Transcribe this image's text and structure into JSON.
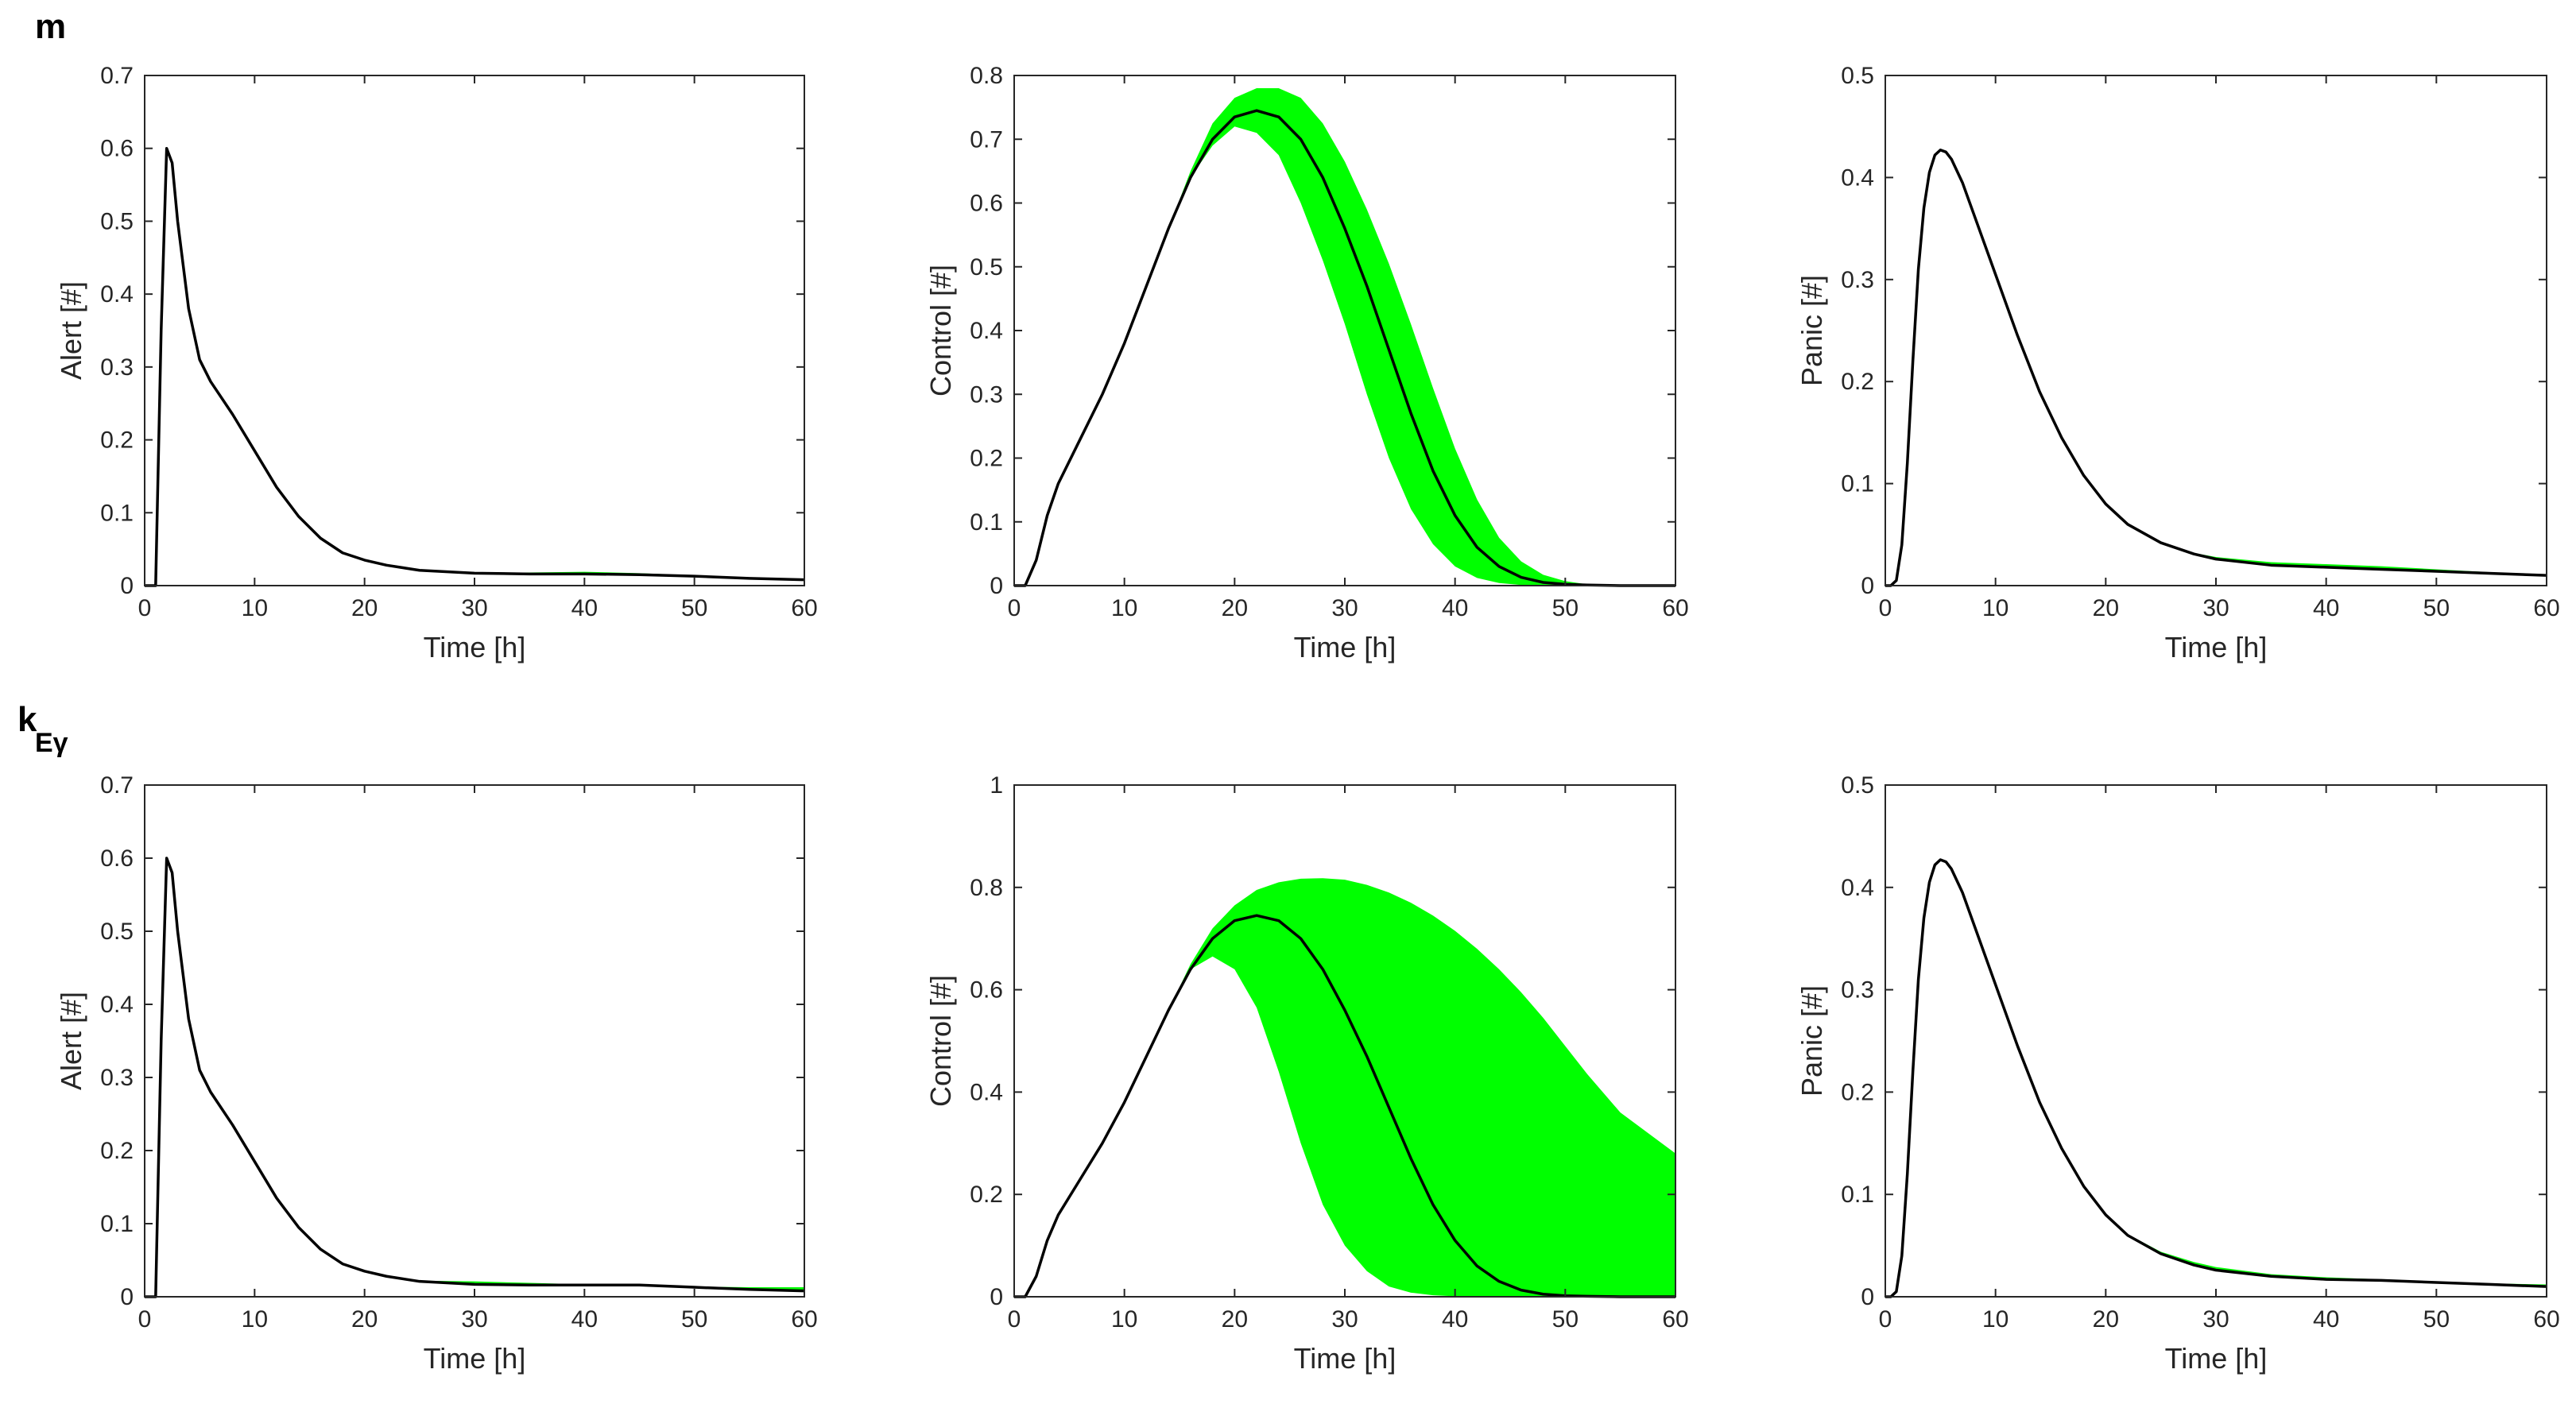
{
  "row_labels": [
    {
      "text": "m",
      "subscript": ""
    },
    {
      "text": "k",
      "subscript": "Eγ"
    }
  ],
  "colors": {
    "band": "#00ff00",
    "line": "#000000",
    "axis": "#262626"
  },
  "chart_data": [
    {
      "type": "area",
      "row": 0,
      "col": 0,
      "xlabel": "Time [h]",
      "ylabel": "Alert [#]",
      "xlim": [
        0,
        60
      ],
      "ylim": [
        0,
        0.7
      ],
      "xticks": [
        0,
        10,
        20,
        30,
        40,
        50,
        60
      ],
      "yticks": [
        0,
        0.1,
        0.2,
        0.3,
        0.4,
        0.5,
        0.6,
        0.7
      ],
      "x": [
        0,
        0.5,
        1,
        1.5,
        2,
        2.5,
        3,
        4,
        5,
        6,
        8,
        10,
        12,
        14,
        16,
        18,
        20,
        22,
        25,
        30,
        35,
        40,
        45,
        50,
        55,
        60
      ],
      "series": [
        {
          "role": "mean",
          "values": [
            0,
            0,
            0,
            0.35,
            0.6,
            0.58,
            0.5,
            0.38,
            0.31,
            0.28,
            0.235,
            0.185,
            0.135,
            0.095,
            0.065,
            0.045,
            0.035,
            0.028,
            0.021,
            0.017,
            0.016,
            0.016,
            0.015,
            0.013,
            0.01,
            0.008
          ]
        },
        {
          "role": "upper",
          "values": [
            0,
            0,
            0,
            0.35,
            0.6,
            0.58,
            0.5,
            0.38,
            0.31,
            0.28,
            0.235,
            0.185,
            0.135,
            0.095,
            0.065,
            0.045,
            0.035,
            0.028,
            0.021,
            0.018,
            0.018,
            0.019,
            0.017,
            0.014,
            0.011,
            0.009
          ]
        },
        {
          "role": "lower",
          "values": [
            0,
            0,
            0,
            0.35,
            0.6,
            0.58,
            0.5,
            0.38,
            0.31,
            0.28,
            0.235,
            0.185,
            0.135,
            0.095,
            0.065,
            0.045,
            0.035,
            0.028,
            0.021,
            0.017,
            0.015,
            0.015,
            0.014,
            0.012,
            0.01,
            0.008
          ]
        }
      ]
    },
    {
      "type": "area",
      "row": 0,
      "col": 1,
      "xlabel": "Time [h]",
      "ylabel": "Control [#]",
      "xlim": [
        0,
        60
      ],
      "ylim": [
        0,
        0.8
      ],
      "xticks": [
        0,
        10,
        20,
        30,
        40,
        50,
        60
      ],
      "yticks": [
        0,
        0.1,
        0.2,
        0.3,
        0.4,
        0.5,
        0.6,
        0.7,
        0.8
      ],
      "x": [
        0,
        1,
        2,
        3,
        4,
        6,
        8,
        10,
        12,
        14,
        16,
        18,
        20,
        22,
        24,
        26,
        28,
        30,
        32,
        34,
        36,
        38,
        40,
        42,
        44,
        46,
        48,
        50,
        52,
        55,
        60
      ],
      "series": [
        {
          "role": "mean",
          "values": [
            0,
            0,
            0.04,
            0.11,
            0.16,
            0.23,
            0.3,
            0.38,
            0.47,
            0.56,
            0.64,
            0.7,
            0.735,
            0.745,
            0.735,
            0.7,
            0.64,
            0.56,
            0.47,
            0.37,
            0.27,
            0.18,
            0.11,
            0.06,
            0.03,
            0.013,
            0.005,
            0.002,
            0.001,
            0,
            0
          ]
        },
        {
          "role": "upper",
          "values": [
            0,
            0,
            0.04,
            0.11,
            0.16,
            0.23,
            0.3,
            0.38,
            0.47,
            0.56,
            0.65,
            0.725,
            0.765,
            0.78,
            0.78,
            0.765,
            0.725,
            0.665,
            0.59,
            0.505,
            0.41,
            0.31,
            0.215,
            0.135,
            0.075,
            0.038,
            0.017,
            0.007,
            0.002,
            0,
            0
          ]
        },
        {
          "role": "lower",
          "values": [
            0,
            0,
            0.04,
            0.11,
            0.16,
            0.23,
            0.3,
            0.38,
            0.47,
            0.56,
            0.64,
            0.69,
            0.72,
            0.71,
            0.675,
            0.6,
            0.51,
            0.41,
            0.3,
            0.2,
            0.12,
            0.065,
            0.03,
            0.012,
            0.004,
            0.001,
            0,
            0,
            0,
            0,
            0
          ]
        }
      ]
    },
    {
      "type": "area",
      "row": 0,
      "col": 2,
      "xlabel": "Time [h]",
      "ylabel": "Panic [#]",
      "xlim": [
        0,
        60
      ],
      "ylim": [
        0,
        0.5
      ],
      "xticks": [
        0,
        10,
        20,
        30,
        40,
        50,
        60
      ],
      "yticks": [
        0,
        0.1,
        0.2,
        0.3,
        0.4,
        0.5
      ],
      "x": [
        0,
        0.5,
        1,
        1.5,
        2,
        2.5,
        3,
        3.5,
        4,
        4.5,
        5,
        5.5,
        6,
        7,
        8,
        10,
        12,
        14,
        16,
        18,
        20,
        22,
        25,
        28,
        30,
        35,
        40,
        45,
        50,
        55,
        60
      ],
      "series": [
        {
          "role": "mean",
          "values": [
            0,
            0,
            0.005,
            0.04,
            0.12,
            0.22,
            0.31,
            0.37,
            0.405,
            0.422,
            0.427,
            0.425,
            0.418,
            0.395,
            0.365,
            0.305,
            0.245,
            0.19,
            0.145,
            0.108,
            0.08,
            0.06,
            0.042,
            0.031,
            0.026,
            0.02,
            0.018,
            0.016,
            0.014,
            0.012,
            0.01
          ]
        },
        {
          "role": "upper",
          "values": [
            0,
            0,
            0.005,
            0.04,
            0.12,
            0.22,
            0.31,
            0.37,
            0.405,
            0.422,
            0.427,
            0.425,
            0.418,
            0.395,
            0.365,
            0.305,
            0.245,
            0.19,
            0.145,
            0.108,
            0.08,
            0.06,
            0.042,
            0.032,
            0.028,
            0.023,
            0.021,
            0.019,
            0.016,
            0.013,
            0.01
          ]
        },
        {
          "role": "lower",
          "values": [
            0,
            0,
            0.005,
            0.04,
            0.12,
            0.22,
            0.31,
            0.37,
            0.405,
            0.422,
            0.427,
            0.425,
            0.418,
            0.395,
            0.365,
            0.305,
            0.245,
            0.19,
            0.145,
            0.108,
            0.08,
            0.06,
            0.042,
            0.031,
            0.025,
            0.019,
            0.017,
            0.015,
            0.013,
            0.011,
            0.009
          ]
        }
      ]
    },
    {
      "type": "area",
      "row": 1,
      "col": 0,
      "xlabel": "Time [h]",
      "ylabel": "Alert [#]",
      "xlim": [
        0,
        60
      ],
      "ylim": [
        0,
        0.7
      ],
      "xticks": [
        0,
        10,
        20,
        30,
        40,
        50,
        60
      ],
      "yticks": [
        0,
        0.1,
        0.2,
        0.3,
        0.4,
        0.5,
        0.6,
        0.7
      ],
      "x": [
        0,
        0.5,
        1,
        1.5,
        2,
        2.5,
        3,
        4,
        5,
        6,
        8,
        10,
        12,
        14,
        16,
        18,
        20,
        22,
        25,
        30,
        35,
        40,
        45,
        50,
        55,
        60
      ],
      "series": [
        {
          "role": "mean",
          "values": [
            0,
            0,
            0,
            0.35,
            0.6,
            0.58,
            0.5,
            0.38,
            0.31,
            0.28,
            0.235,
            0.185,
            0.135,
            0.095,
            0.065,
            0.045,
            0.035,
            0.028,
            0.021,
            0.017,
            0.016,
            0.016,
            0.016,
            0.013,
            0.01,
            0.008
          ]
        },
        {
          "role": "upper",
          "values": [
            0,
            0,
            0,
            0.35,
            0.6,
            0.58,
            0.5,
            0.38,
            0.31,
            0.28,
            0.235,
            0.185,
            0.135,
            0.095,
            0.065,
            0.045,
            0.035,
            0.028,
            0.022,
            0.021,
            0.019,
            0.017,
            0.016,
            0.014,
            0.013,
            0.013
          ]
        },
        {
          "role": "lower",
          "values": [
            0,
            0,
            0,
            0.35,
            0.6,
            0.58,
            0.5,
            0.38,
            0.31,
            0.28,
            0.235,
            0.185,
            0.135,
            0.095,
            0.065,
            0.045,
            0.035,
            0.028,
            0.021,
            0.016,
            0.015,
            0.015,
            0.015,
            0.012,
            0.009,
            0.007
          ]
        }
      ]
    },
    {
      "type": "area",
      "row": 1,
      "col": 1,
      "xlabel": "Time [h]",
      "ylabel": "Control [#]",
      "xlim": [
        0,
        60
      ],
      "ylim": [
        0,
        1
      ],
      "xticks": [
        0,
        10,
        20,
        30,
        40,
        50,
        60
      ],
      "yticks": [
        0,
        0.2,
        0.4,
        0.6,
        0.8,
        1
      ],
      "x": [
        0,
        1,
        2,
        3,
        4,
        6,
        8,
        10,
        12,
        14,
        16,
        18,
        20,
        22,
        24,
        26,
        28,
        30,
        32,
        34,
        36,
        38,
        40,
        42,
        44,
        46,
        48,
        50,
        52,
        55,
        60
      ],
      "series": [
        {
          "role": "mean",
          "values": [
            0,
            0,
            0.04,
            0.11,
            0.16,
            0.23,
            0.3,
            0.38,
            0.47,
            0.56,
            0.64,
            0.7,
            0.735,
            0.745,
            0.735,
            0.7,
            0.64,
            0.56,
            0.47,
            0.37,
            0.27,
            0.18,
            0.11,
            0.06,
            0.03,
            0.013,
            0.005,
            0.002,
            0.001,
            0,
            0
          ]
        },
        {
          "role": "upper",
          "values": [
            0,
            0,
            0.04,
            0.11,
            0.16,
            0.23,
            0.3,
            0.38,
            0.47,
            0.56,
            0.65,
            0.72,
            0.765,
            0.795,
            0.81,
            0.817,
            0.818,
            0.815,
            0.805,
            0.79,
            0.77,
            0.745,
            0.715,
            0.68,
            0.64,
            0.595,
            0.545,
            0.49,
            0.435,
            0.36,
            0.28
          ]
        },
        {
          "role": "lower",
          "values": [
            0,
            0,
            0.04,
            0.11,
            0.16,
            0.23,
            0.3,
            0.38,
            0.47,
            0.56,
            0.64,
            0.665,
            0.64,
            0.565,
            0.44,
            0.3,
            0.18,
            0.1,
            0.05,
            0.02,
            0.008,
            0.003,
            0.001,
            0,
            0,
            0,
            0,
            0,
            0,
            0,
            0
          ]
        }
      ]
    },
    {
      "type": "area",
      "row": 1,
      "col": 2,
      "xlabel": "Time [h]",
      "ylabel": "Panic [#]",
      "xlim": [
        0,
        60
      ],
      "ylim": [
        0,
        0.5
      ],
      "xticks": [
        0,
        10,
        20,
        30,
        40,
        50,
        60
      ],
      "yticks": [
        0,
        0.1,
        0.2,
        0.3,
        0.4,
        0.5
      ],
      "x": [
        0,
        0.5,
        1,
        1.5,
        2,
        2.5,
        3,
        3.5,
        4,
        4.5,
        5,
        5.5,
        6,
        7,
        8,
        10,
        12,
        14,
        16,
        18,
        20,
        22,
        25,
        28,
        30,
        35,
        40,
        45,
        50,
        55,
        60
      ],
      "series": [
        {
          "role": "mean",
          "values": [
            0,
            0,
            0.005,
            0.04,
            0.12,
            0.22,
            0.31,
            0.37,
            0.405,
            0.422,
            0.427,
            0.425,
            0.418,
            0.395,
            0.365,
            0.305,
            0.245,
            0.19,
            0.145,
            0.108,
            0.08,
            0.06,
            0.042,
            0.031,
            0.026,
            0.02,
            0.017,
            0.016,
            0.014,
            0.012,
            0.01
          ]
        },
        {
          "role": "upper",
          "values": [
            0,
            0,
            0.005,
            0.04,
            0.12,
            0.22,
            0.31,
            0.37,
            0.405,
            0.422,
            0.427,
            0.425,
            0.418,
            0.395,
            0.365,
            0.305,
            0.245,
            0.19,
            0.145,
            0.108,
            0.08,
            0.061,
            0.044,
            0.034,
            0.029,
            0.022,
            0.019,
            0.017,
            0.015,
            0.013,
            0.012
          ]
        },
        {
          "role": "lower",
          "values": [
            0,
            0,
            0.005,
            0.04,
            0.12,
            0.22,
            0.31,
            0.37,
            0.405,
            0.422,
            0.427,
            0.425,
            0.418,
            0.395,
            0.365,
            0.305,
            0.245,
            0.19,
            0.145,
            0.108,
            0.08,
            0.06,
            0.041,
            0.03,
            0.025,
            0.019,
            0.016,
            0.015,
            0.013,
            0.011,
            0.009
          ]
        }
      ]
    }
  ]
}
